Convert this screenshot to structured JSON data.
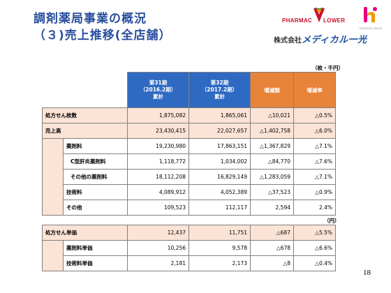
{
  "title": {
    "line1": "調剤薬局事業の概況",
    "line2": "（３)売上推移(全店舗）"
  },
  "logo": {
    "pharmac": "PHARMAC",
    "flower": "LOWER",
    "harmony": "Harmony House",
    "company_prefix": "株式会社",
    "company_name": "メディカル一光",
    "colors": {
      "red": "#c8102e",
      "pink": "#e6007e",
      "orange": "#f39800",
      "blue": "#1a4fa0"
    }
  },
  "units": {
    "table1": "（枚・千円）",
    "table2": "（円）"
  },
  "table1": {
    "headers": {
      "fy31": [
        "第31期",
        "（2016.2期）",
        "累計"
      ],
      "fy32": [
        "第32期",
        "（2017.2期）",
        "累計"
      ],
      "change": "増減額",
      "rate": "増減率"
    },
    "rows": [
      {
        "label": "処方せん枚数",
        "fy31": "1,875,082",
        "fy32": "1,865,061",
        "change": "△10,021",
        "rate": "△0.5%"
      },
      {
        "label": "売上高",
        "fy31": "23,430,415",
        "fy32": "22,027,657",
        "change": "△1,402,758",
        "rate": "△6.0%"
      },
      {
        "label": "薬剤料",
        "fy31": "19,230,980",
        "fy32": "17,863,151",
        "change": "△1,367,829",
        "rate": "△7.1%"
      },
      {
        "label": "C型肝炎薬剤料",
        "fy31": "1,118,772",
        "fy32": "1,034,002",
        "change": "△84,770",
        "rate": "△7.6%"
      },
      {
        "label": "その他の薬剤料",
        "fy31": "18,112,208",
        "fy32": "16,829,149",
        "change": "△1,283,059",
        "rate": "△7.1%"
      },
      {
        "label": "技術料",
        "fy31": "4,089,912",
        "fy32": "4,052,389",
        "change": "△37,523",
        "rate": "△0.9%"
      },
      {
        "label": "その他",
        "fy31": "109,523",
        "fy32": "112,117",
        "change": "2,594",
        "rate": "2.4%"
      }
    ]
  },
  "table2": {
    "rows": [
      {
        "label": "処方せん単価",
        "fy31": "12,437",
        "fy32": "11,751",
        "change": "△687",
        "rate": "△5.5%"
      },
      {
        "label": "薬剤料単価",
        "fy31": "10,256",
        "fy32": "9,578",
        "change": "△678",
        "rate": "△6.6%"
      },
      {
        "label": "技術料単価",
        "fy31": "2,181",
        "fy32": "2,173",
        "change": "△8",
        "rate": "△0.4%"
      }
    ]
  },
  "page_number": "18"
}
